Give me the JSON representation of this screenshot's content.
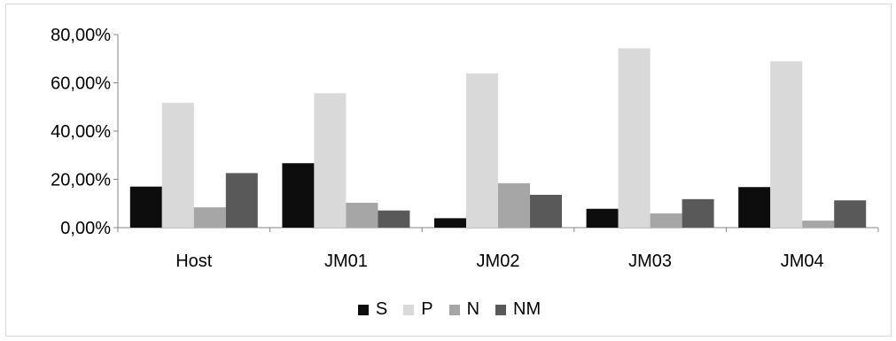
{
  "chart_data": {
    "type": "bar",
    "categories": [
      "Host",
      "JM01",
      "JM02",
      "JM03",
      "JM04"
    ],
    "series": [
      {
        "name": "S",
        "color": "#0d0d0d",
        "values": [
          17.0,
          26.7,
          3.9,
          7.8,
          16.8
        ]
      },
      {
        "name": "P",
        "color": "#d9d9d9",
        "values": [
          51.7,
          55.7,
          63.9,
          74.3,
          68.9
        ]
      },
      {
        "name": "N",
        "color": "#a6a6a6",
        "values": [
          8.4,
          10.3,
          18.4,
          5.9,
          2.9
        ]
      },
      {
        "name": "NM",
        "color": "#595959",
        "values": [
          22.6,
          7.1,
          13.6,
          11.8,
          11.3
        ]
      }
    ],
    "yticks": [
      "0,00%",
      "20,00%",
      "40,00%",
      "60,00%",
      "80,00%"
    ],
    "ylim": [
      0,
      80
    ],
    "grid": false,
    "legend_position": "bottom"
  }
}
